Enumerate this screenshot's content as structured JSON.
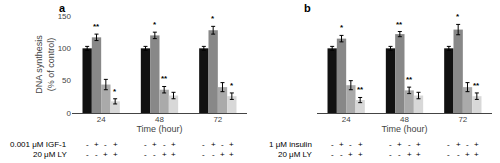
{
  "chart_data": [
    {
      "type": "bar",
      "title": "a",
      "categories": [
        "24",
        "48",
        "72"
      ],
      "xlabel": "Time (hour)",
      "ylabel": "DNA synthesis\n(% of control)",
      "ylim": [
        0,
        150
      ],
      "yticks": [
        0,
        50,
        100,
        150
      ],
      "grid": false,
      "series": [
        {
          "color": "#111111",
          "values": [
            100,
            100,
            100
          ],
          "errors": [
            3,
            3,
            3
          ]
        },
        {
          "color": "#888888",
          "values": [
            117,
            120,
            128
          ],
          "errors": [
            5,
            5,
            6
          ],
          "annotations": [
            "**",
            "*",
            "*"
          ]
        },
        {
          "color": "#aaaaaa",
          "values": [
            44,
            36,
            40
          ],
          "errors": [
            8,
            5,
            7
          ],
          "annotations": [
            null,
            "**",
            null
          ]
        },
        {
          "color": "#d8d8d8",
          "values": [
            18,
            27,
            26
          ],
          "errors": [
            4,
            5,
            5
          ],
          "annotations": [
            "*",
            null,
            "*"
          ]
        }
      ],
      "condition_rows": [
        {
          "label": "0.001 μM IGF-1",
          "values": [
            "-",
            "+",
            "-",
            "+",
            "-",
            "+",
            "-",
            "+",
            "-",
            "+",
            "-",
            "+"
          ]
        },
        {
          "label": "20 μM LY",
          "values": [
            "-",
            "-",
            "+",
            "+",
            "-",
            "-",
            "+",
            "+",
            "-",
            "-",
            "+",
            "+"
          ]
        }
      ]
    },
    {
      "type": "bar",
      "title": "b",
      "categories": [
        "24",
        "48",
        "72"
      ],
      "xlabel": "Time (hour)",
      "ylim": [
        0,
        150
      ],
      "yticks": [
        0,
        50,
        100,
        150
      ],
      "grid": false,
      "tick_labels": "x",
      "series": [
        {
          "color": "#111111",
          "values": [
            100,
            100,
            100
          ],
          "errors": [
            3,
            3,
            3
          ]
        },
        {
          "color": "#888888",
          "values": [
            115,
            122,
            129
          ],
          "errors": [
            5,
            4,
            8
          ],
          "annotations": [
            "*",
            "**",
            "*"
          ]
        },
        {
          "color": "#aaaaaa",
          "values": [
            43,
            35,
            40
          ],
          "errors": [
            7,
            5,
            7
          ],
          "annotations": [
            null,
            "**",
            null
          ]
        },
        {
          "color": "#d8d8d8",
          "values": [
            20,
            27,
            26
          ],
          "errors": [
            4,
            5,
            5
          ],
          "annotations": [
            "**",
            null,
            "**"
          ]
        }
      ],
      "condition_rows": [
        {
          "label": "1 μM insulin",
          "values": [
            "-",
            "+",
            "-",
            "+",
            "-",
            "+",
            "-",
            "+",
            "-",
            "+",
            "-",
            "+"
          ]
        },
        {
          "label": "20 μM LY",
          "values": [
            "-",
            "-",
            "+",
            "+",
            "-",
            "-",
            "+",
            "+",
            "-",
            "-",
            "+",
            "+"
          ]
        }
      ]
    }
  ]
}
